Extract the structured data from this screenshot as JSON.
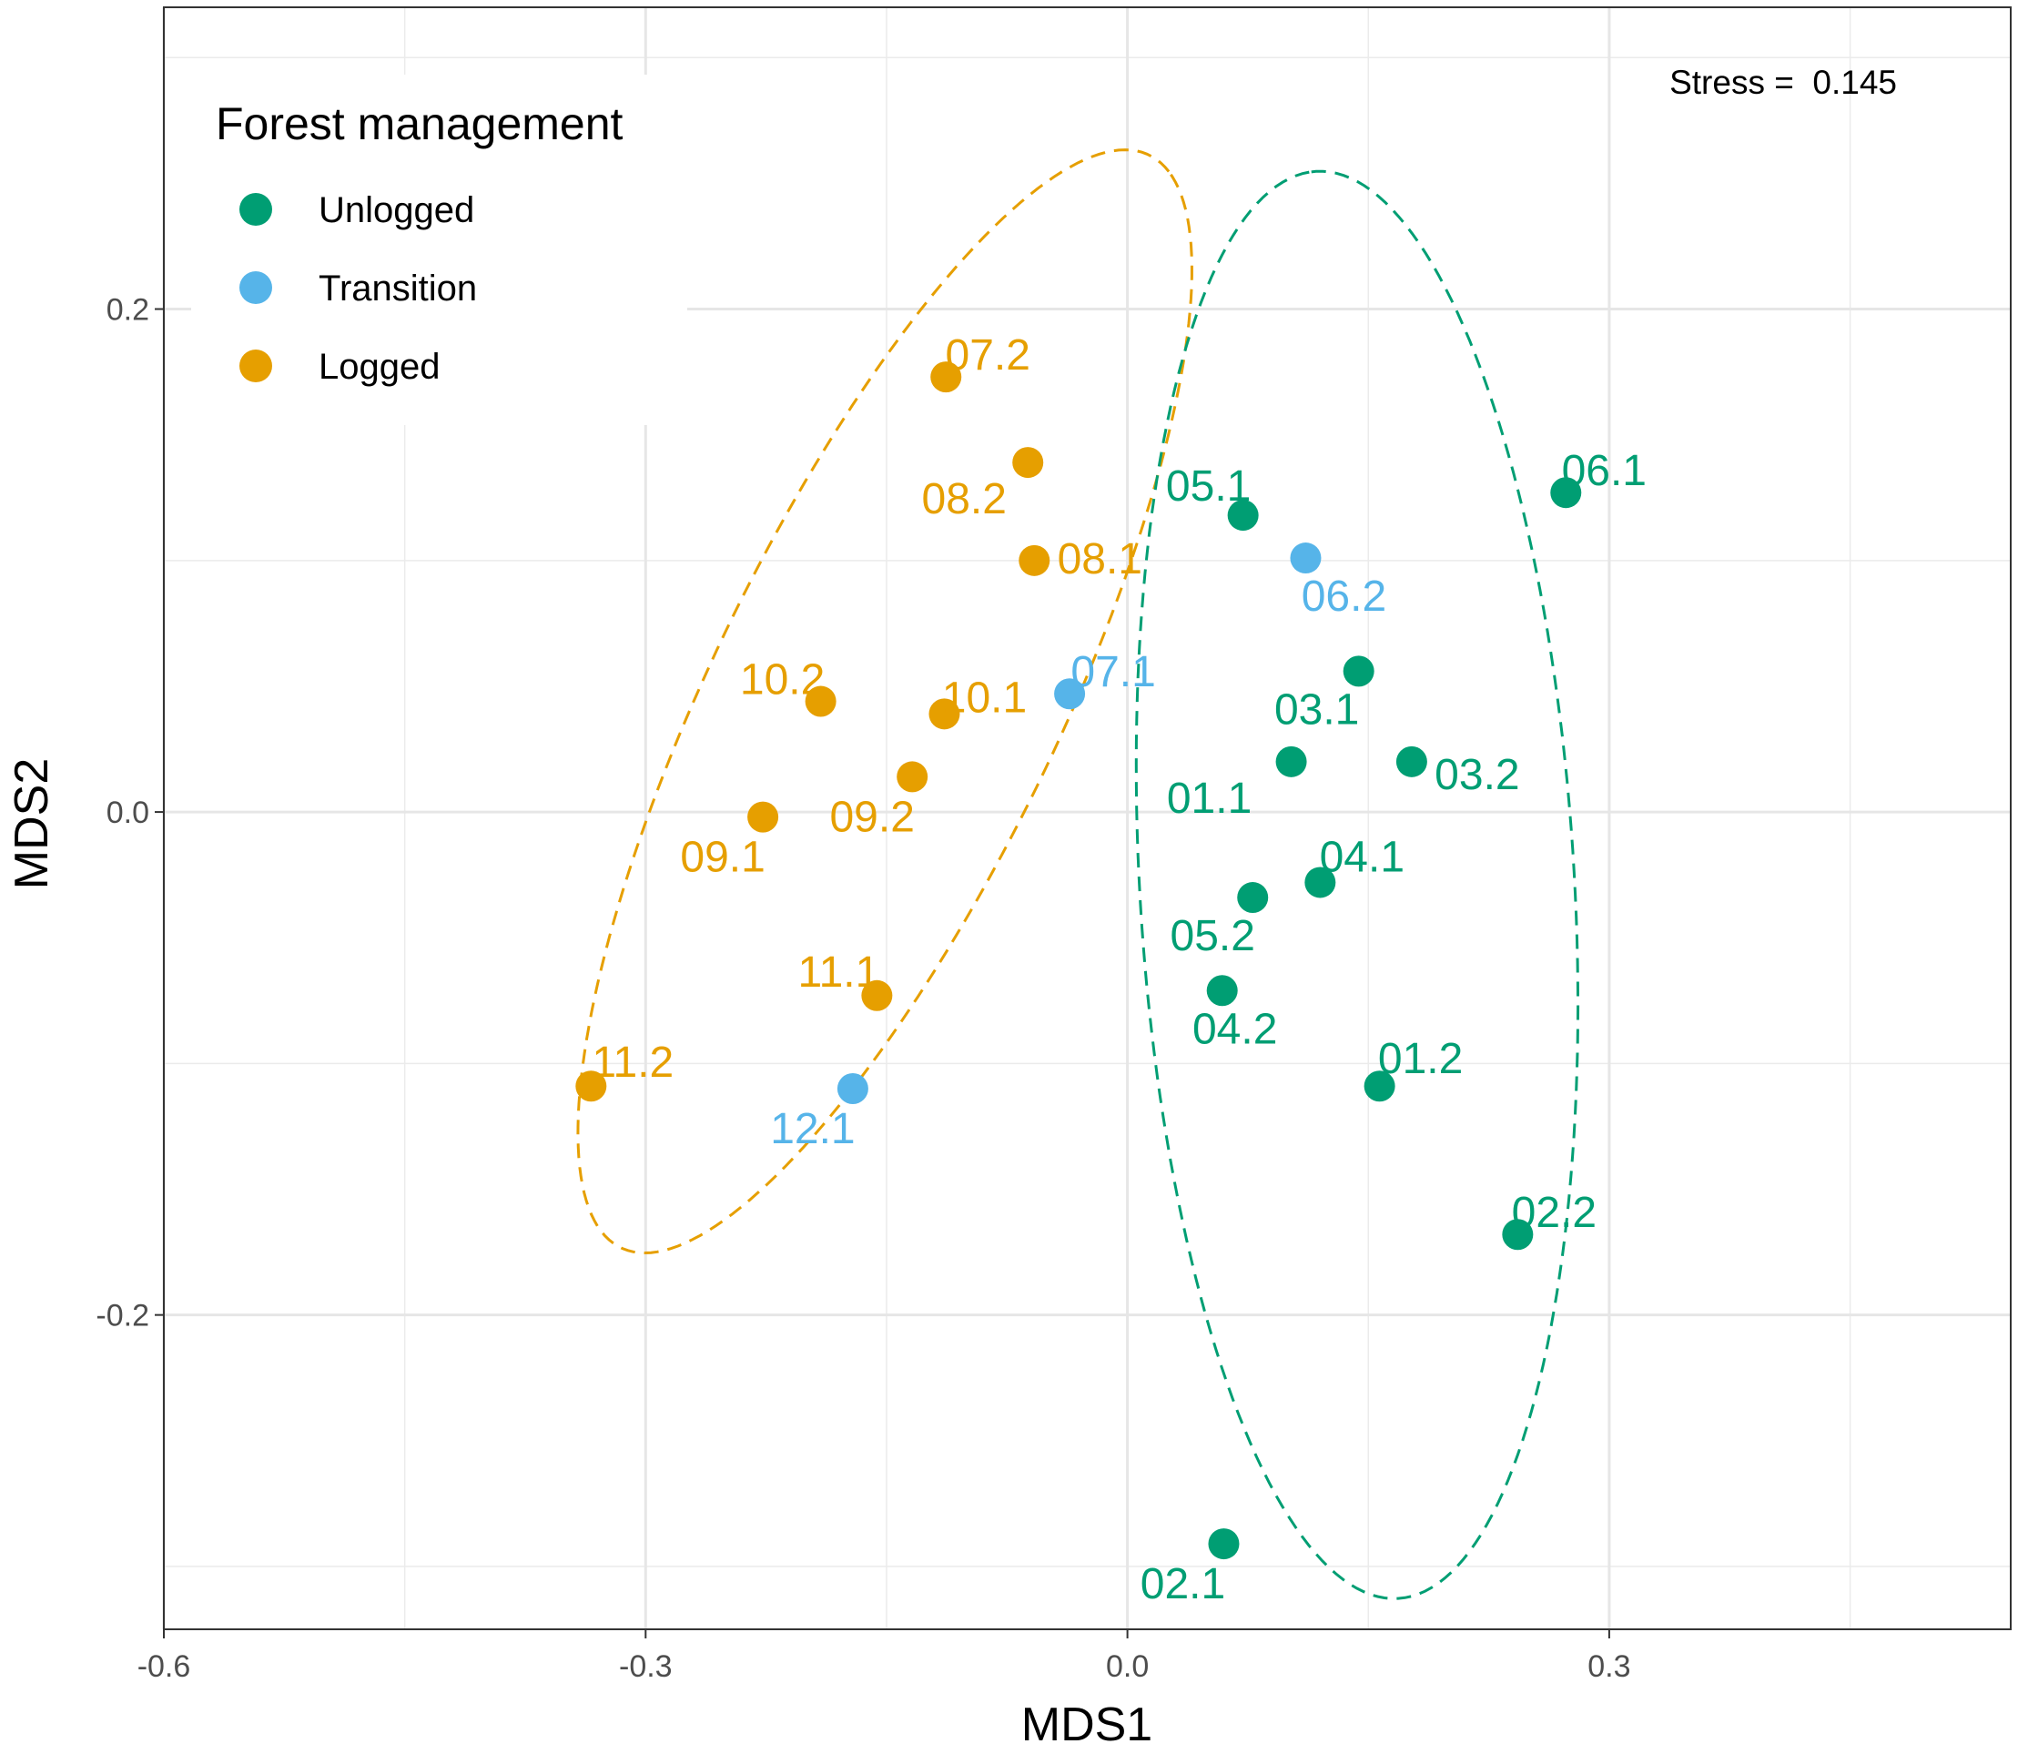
{
  "chart_data": {
    "type": "scatter",
    "title": "",
    "xlabel": "MDS1",
    "ylabel": "MDS2",
    "xlim": [
      -0.6,
      0.55
    ],
    "ylim": [
      -0.325,
      0.32
    ],
    "x_ticks": [
      -0.6,
      -0.3,
      0.0,
      0.3
    ],
    "x_tick_labels": [
      "-0.6",
      "-0.3",
      "0.0",
      "0.3"
    ],
    "y_ticks": [
      -0.2,
      0.0,
      0.2
    ],
    "y_tick_labels": [
      "-0.2",
      "0.0",
      "0.2"
    ],
    "grid": true,
    "stress_label": "Stress =  0.145",
    "legend": {
      "title": "Forest management",
      "position": "top-left",
      "entries": [
        {
          "name": "Unlogged",
          "color": "#009E73"
        },
        {
          "name": "Transition",
          "color": "#56B4E9"
        },
        {
          "name": "Logged",
          "color": "#E69F00"
        }
      ]
    },
    "series": [
      {
        "name": "Unlogged",
        "color": "#009E73",
        "points": [
          {
            "label": "01.1",
            "x": 0.102,
            "y": 0.02
          },
          {
            "label": "01.2",
            "x": 0.157,
            "y": -0.109
          },
          {
            "label": "02.1",
            "x": 0.06,
            "y": -0.291
          },
          {
            "label": "02.2",
            "x": 0.243,
            "y": -0.168
          },
          {
            "label": "03.1",
            "x": 0.144,
            "y": 0.056
          },
          {
            "label": "03.2",
            "x": 0.177,
            "y": 0.02
          },
          {
            "label": "04.1",
            "x": 0.12,
            "y": -0.028
          },
          {
            "label": "04.2",
            "x": 0.059,
            "y": -0.071
          },
          {
            "label": "05.1",
            "x": 0.072,
            "y": 0.118
          },
          {
            "label": "05.2",
            "x": 0.078,
            "y": -0.034
          },
          {
            "label": "06.1",
            "x": 0.273,
            "y": 0.127
          }
        ]
      },
      {
        "name": "Transition",
        "color": "#56B4E9",
        "points": [
          {
            "label": "06.2",
            "x": 0.111,
            "y": 0.101
          },
          {
            "label": "07.1",
            "x": -0.036,
            "y": 0.047
          },
          {
            "label": "12.1",
            "x": -0.171,
            "y": -0.11
          }
        ]
      },
      {
        "name": "Logged",
        "color": "#E69F00",
        "points": [
          {
            "label": "07.2",
            "x": -0.113,
            "y": 0.173
          },
          {
            "label": "08.1",
            "x": -0.058,
            "y": 0.1
          },
          {
            "label": "08.2",
            "x": -0.062,
            "y": 0.139
          },
          {
            "label": "09.1",
            "x": -0.227,
            "y": -0.002
          },
          {
            "label": "09.2",
            "x": -0.134,
            "y": 0.014
          },
          {
            "label": "10.1",
            "x": -0.114,
            "y": 0.039
          },
          {
            "label": "10.2",
            "x": -0.191,
            "y": 0.044
          },
          {
            "label": "11.1",
            "x": -0.156,
            "y": -0.073
          },
          {
            "label": "11.2",
            "x": -0.334,
            "y": -0.109
          }
        ]
      }
    ],
    "ellipses": [
      {
        "group": "Logged",
        "color": "#E69F00",
        "style": "dashed",
        "center": [
          -0.151,
          0.044
        ],
        "semi_major": 0.275,
        "semi_minor": 0.095,
        "angle_deg": 50
      },
      {
        "group": "Unlogged",
        "color": "#009E73",
        "style": "dashed",
        "center": [
          0.143,
          -0.029
        ],
        "semi_major": 0.285,
        "semi_minor": 0.135,
        "angle_deg": 96
      }
    ]
  }
}
